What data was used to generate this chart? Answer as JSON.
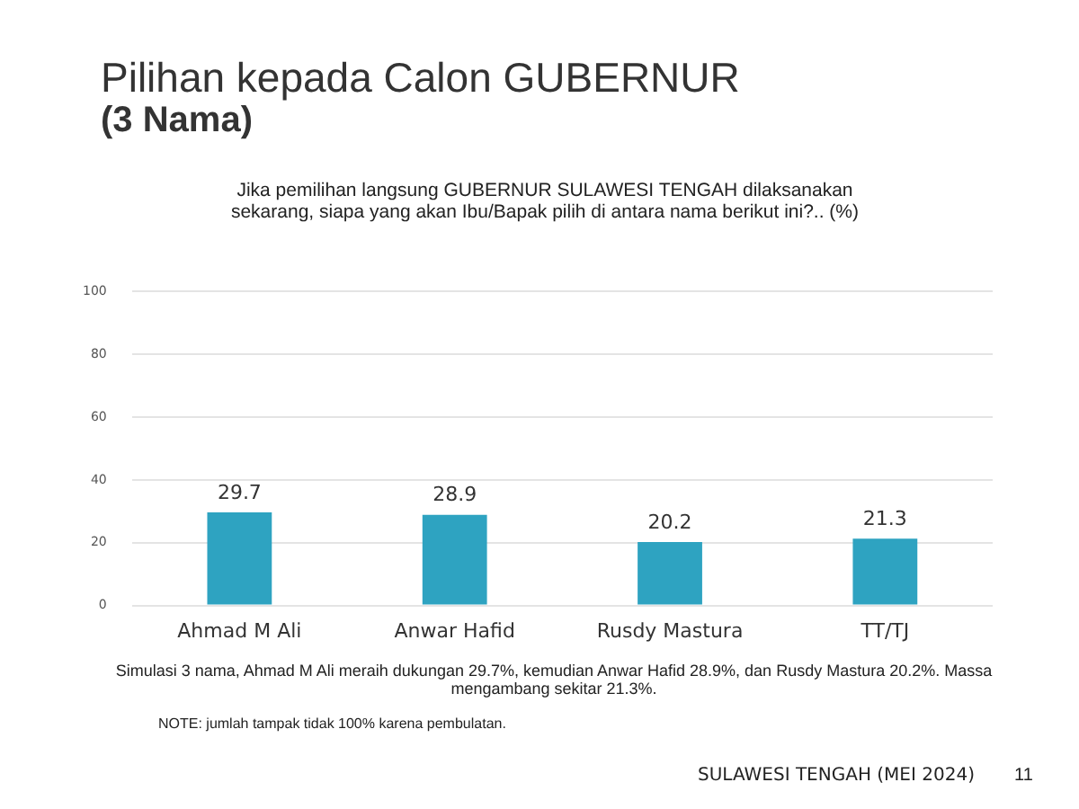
{
  "chart_data": {
    "type": "bar",
    "title": "Pilihan kepada Calon GUBERNUR",
    "subtitle": "(3 Nama)",
    "categories": [
      "Ahmad M Ali",
      "Anwar Hafid",
      "Rusdy Mastura",
      "TT/TJ"
    ],
    "values": [
      29.7,
      28.9,
      20.2,
      21.3
    ],
    "color": "#2ea3c1",
    "ylim": [
      0,
      100
    ],
    "yticks": [
      0,
      20,
      40,
      60,
      80,
      100
    ],
    "grid": "y",
    "data_labels": true,
    "annotations": [
      "Jika pemilihan langsung GUBERNUR SULAWESI TENGAH dilaksanakan sekarang, siapa yang akan Ibu/Bapak pilih di antara nama berikut ini?.. (%)",
      "Simulasi 3 nama, Ahmad M Ali meraih dukungan 29.7%, kemudian Anwar Hafid 28.9%, dan Rusdy Mastura 20.2%. Massa mengambang sekitar 21.3%.",
      "NOTE: jumlah tampak tidak 100% karena pembulatan.",
      "SULAWESI TENGAH (MEI 2024)",
      "11"
    ]
  }
}
